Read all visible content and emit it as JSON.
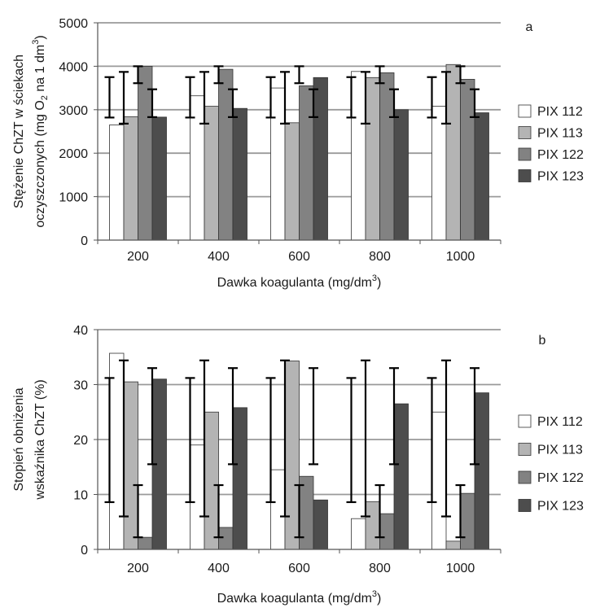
{
  "chart_data": [
    {
      "type": "bar",
      "panel_label": "a",
      "categories": [
        "200",
        "400",
        "600",
        "800",
        "1000"
      ],
      "ylabel_line1": "Stężenie ChZT w ściekach",
      "ylabel_line2_pre": "oczyszczonych (mg O",
      "ylabel_line2_sub": "2",
      "ylabel_line2_mid": " na 1 dm",
      "ylabel_line2_sup": "3",
      "ylabel_line2_post": ")",
      "xlabel_pre": "Dawka koagulanta (mg/dm",
      "xlabel_sup": "3",
      "xlabel_post": ")",
      "ylim": [
        0,
        5000
      ],
      "yticks": [
        "0",
        "1000",
        "2000",
        "3000",
        "4000",
        "5000"
      ],
      "grid": true,
      "legend_position": "right",
      "series": [
        {
          "name": "PIX 112",
          "color": "#ffffff",
          "values": [
            2650,
            3320,
            3500,
            3880,
            3080
          ],
          "errors": [
            [
              2820,
              3750
            ],
            [
              2820,
              3750
            ],
            [
              2820,
              3750
            ],
            [
              2820,
              3750
            ],
            [
              2820,
              3750
            ]
          ]
        },
        {
          "name": "PIX 113",
          "color": "#b4b4b4",
          "values": [
            2840,
            3080,
            2700,
            3740,
            4040
          ],
          "errors": [
            [
              2680,
              3870
            ],
            [
              2680,
              3870
            ],
            [
              2680,
              3870
            ],
            [
              2680,
              3870
            ],
            [
              2680,
              3870
            ]
          ]
        },
        {
          "name": "PIX 122",
          "color": "#828282",
          "values": [
            4000,
            3930,
            3550,
            3850,
            3700
          ],
          "errors": [
            [
              3610,
              4000
            ],
            [
              3610,
              4000
            ],
            [
              3610,
              4000
            ],
            [
              3610,
              4000
            ],
            [
              3610,
              4000
            ]
          ]
        },
        {
          "name": "PIX 123",
          "color": "#4d4d4d",
          "values": [
            2830,
            3030,
            3740,
            3000,
            2930
          ],
          "errors": [
            [
              2830,
              3470
            ],
            [
              2830,
              3470
            ],
            [
              2830,
              3470
            ],
            [
              2830,
              3470
            ],
            [
              2830,
              3470
            ]
          ]
        }
      ]
    },
    {
      "type": "bar",
      "panel_label": "b",
      "categories": [
        "200",
        "400",
        "600",
        "800",
        "1000"
      ],
      "ylabel_line1": "Stopień obniżenia",
      "ylabel_line2": "wskaźnika ChZT (%)",
      "xlabel_pre": "Dawka koagulanta (mg/dm",
      "xlabel_sup": "3",
      "xlabel_post": ")",
      "ylim": [
        0,
        40
      ],
      "yticks": [
        "0",
        "10",
        "20",
        "30",
        "40"
      ],
      "grid": true,
      "legend_position": "right",
      "series": [
        {
          "name": "PIX 112",
          "color": "#ffffff",
          "values": [
            35.7,
            19.0,
            14.5,
            5.6,
            25.0
          ],
          "errors": [
            [
              8.6,
              31.2
            ],
            [
              8.6,
              31.2
            ],
            [
              8.6,
              31.2
            ],
            [
              8.6,
              31.2
            ],
            [
              8.6,
              31.2
            ]
          ]
        },
        {
          "name": "PIX 113",
          "color": "#b4b4b4",
          "values": [
            30.5,
            25.0,
            34.3,
            8.7,
            1.5
          ],
          "errors": [
            [
              6.0,
              34.4
            ],
            [
              6.0,
              34.4
            ],
            [
              6.0,
              34.4
            ],
            [
              6.0,
              34.4
            ],
            [
              6.0,
              34.4
            ]
          ]
        },
        {
          "name": "PIX 122",
          "color": "#828282",
          "values": [
            2.2,
            4.0,
            13.3,
            6.5,
            10.2
          ],
          "errors": [
            [
              2.2,
              11.7
            ],
            [
              2.2,
              11.7
            ],
            [
              2.2,
              11.7
            ],
            [
              2.2,
              11.7
            ],
            [
              2.2,
              11.7
            ]
          ]
        },
        {
          "name": "PIX 123",
          "color": "#4d4d4d",
          "values": [
            31.0,
            25.8,
            9.0,
            26.5,
            28.5
          ],
          "errors": [
            [
              15.5,
              33.0
            ],
            [
              15.5,
              33.0
            ],
            [
              15.5,
              33.0
            ],
            [
              15.5,
              33.0
            ],
            [
              15.5,
              33.0
            ]
          ]
        }
      ]
    }
  ]
}
